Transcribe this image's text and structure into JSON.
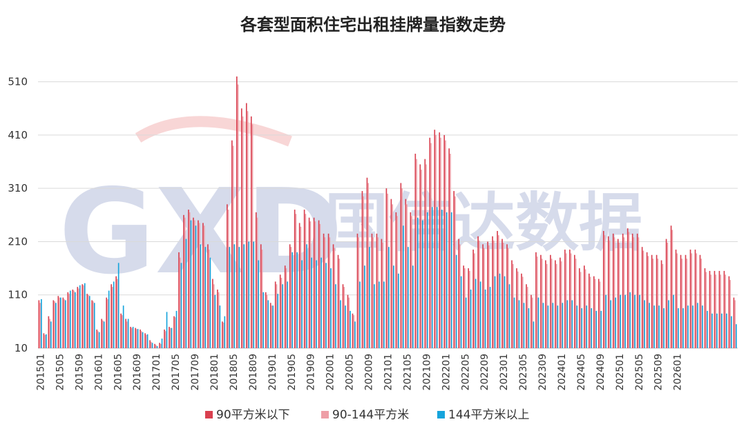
{
  "watermark": {
    "latin": "GXD",
    "chinese": "国信达数据"
  },
  "chart_data": {
    "type": "bar",
    "title": "各套型面积住宅出租挂牌量指数走势",
    "xlabel": "",
    "ylabel": "",
    "ylim": [
      10,
      560
    ],
    "yticks": [
      10,
      110,
      210,
      310,
      410,
      510
    ],
    "grid": true,
    "legend_position": "bottom",
    "xticks": [
      "201501",
      "201505",
      "201509",
      "201601",
      "201605",
      "201609",
      "201701",
      "201705",
      "201709",
      "201801",
      "201805",
      "201809",
      "201901",
      "201905",
      "201909",
      "202001",
      "202005",
      "202009",
      "202101",
      "202105",
      "202109",
      "202201",
      "202205",
      "202209",
      "202301",
      "202305",
      "202309",
      "202401",
      "202405",
      "202409",
      "202501",
      "202505",
      "202509",
      "202601"
    ],
    "start_month": "201501",
    "end_month": "202602",
    "series": [
      {
        "name": "90平方米以下",
        "color": "#d9404f",
        "values": [
          100,
          38,
          70,
          100,
          108,
          105,
          115,
          120,
          125,
          130,
          112,
          100,
          45,
          65,
          105,
          130,
          145,
          75,
          65,
          50,
          48,
          45,
          38,
          25,
          18,
          20,
          45,
          50,
          70,
          190,
          260,
          270,
          255,
          250,
          245,
          205,
          140,
          120,
          60,
          280,
          400,
          520,
          460,
          470,
          445,
          265,
          205,
          115,
          95,
          135,
          148,
          165,
          205,
          270,
          245,
          270,
          255,
          255,
          250,
          225,
          225,
          205,
          185,
          130,
          110,
          75,
          225,
          305,
          330,
          225,
          225,
          215,
          310,
          290,
          265,
          320,
          290,
          265,
          375,
          355,
          365,
          405,
          420,
          415,
          410,
          385,
          305,
          215,
          165,
          160,
          195,
          220,
          205,
          210,
          220,
          230,
          215,
          205,
          175,
          160,
          150,
          130,
          110,
          190,
          185,
          175,
          185,
          175,
          180,
          195,
          195,
          185,
          160,
          165,
          150,
          145,
          140,
          230,
          220,
          225,
          215,
          225,
          235,
          225,
          225,
          200,
          190,
          185,
          185,
          175,
          215,
          240,
          195,
          185,
          185,
          195,
          195,
          185,
          160,
          155,
          155,
          155,
          155,
          145,
          105
        ]
      },
      {
        "name": "90-144平方米",
        "color": "#ee9ea6",
        "values": [
          95,
          35,
          65,
          98,
          105,
          102,
          112,
          118,
          122,
          128,
          110,
          98,
          42,
          62,
          102,
          125,
          140,
          72,
          60,
          48,
          46,
          42,
          35,
          22,
          16,
          18,
          42,
          48,
          68,
          180,
          255,
          265,
          250,
          245,
          240,
          195,
          130,
          115,
          58,
          270,
          390,
          505,
          445,
          455,
          430,
          255,
          195,
          110,
          90,
          130,
          142,
          160,
          200,
          262,
          238,
          262,
          248,
          248,
          243,
          218,
          218,
          198,
          178,
          125,
          105,
          72,
          218,
          295,
          320,
          218,
          218,
          208,
          300,
          280,
          258,
          310,
          280,
          258,
          365,
          345,
          355,
          395,
          410,
          405,
          400,
          375,
          295,
          205,
          160,
          155,
          188,
          212,
          198,
          203,
          212,
          222,
          208,
          198,
          168,
          154,
          144,
          125,
          105,
          182,
          178,
          168,
          178,
          168,
          173,
          188,
          188,
          178,
          153,
          158,
          144,
          140,
          135,
          222,
          212,
          218,
          208,
          218,
          228,
          218,
          218,
          193,
          183,
          178,
          178,
          168,
          208,
          232,
          188,
          178,
          178,
          188,
          188,
          178,
          153,
          148,
          148,
          148,
          148,
          138,
          100
        ]
      },
      {
        "name": "144平方米以上",
        "color": "#16a4dc",
        "values": [
          102,
          36,
          60,
          95,
          105,
          100,
          118,
          115,
          128,
          132,
          108,
          95,
          40,
          60,
          118,
          135,
          170,
          90,
          65,
          50,
          46,
          40,
          36,
          20,
          14,
          28,
          78,
          48,
          80,
          170,
          215,
          250,
          240,
          205,
          200,
          180,
          110,
          90,
          70,
          200,
          205,
          200,
          205,
          210,
          210,
          175,
          115,
          100,
          90,
          112,
          130,
          135,
          190,
          190,
          175,
          205,
          180,
          175,
          180,
          170,
          160,
          130,
          100,
          90,
          80,
          60,
          135,
          165,
          200,
          130,
          135,
          135,
          200,
          165,
          150,
          240,
          200,
          165,
          255,
          250,
          265,
          275,
          275,
          270,
          265,
          265,
          185,
          145,
          105,
          120,
          140,
          135,
          120,
          125,
          145,
          150,
          145,
          130,
          105,
          100,
          95,
          85,
          60,
          105,
          95,
          90,
          95,
          90,
          95,
          100,
          100,
          90,
          85,
          90,
          85,
          80,
          80,
          110,
          100,
          105,
          110,
          110,
          115,
          110,
          110,
          100,
          95,
          90,
          90,
          85,
          100,
          110,
          85,
          85,
          90,
          90,
          95,
          90,
          80,
          75,
          75,
          75,
          75,
          70,
          55
        ]
      }
    ]
  }
}
